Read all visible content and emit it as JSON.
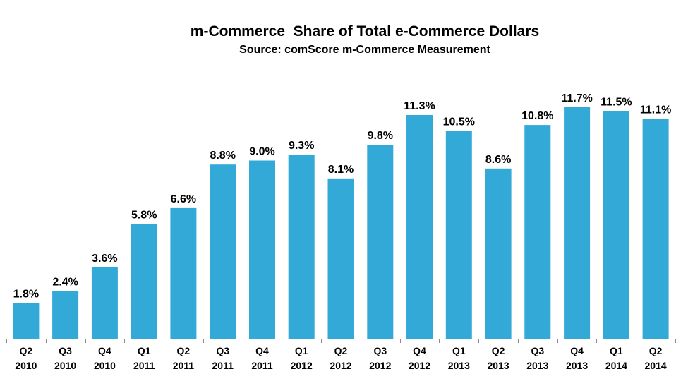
{
  "chart_data": {
    "type": "bar",
    "title": "m-Commerce  Share of Total e-Commerce Dollars",
    "subtitle": "Source: comScore m-Commerce Measurement",
    "xlabel": "",
    "ylabel": "",
    "ylim": [
      0,
      14
    ],
    "grid": false,
    "legend": "none",
    "bar_color": "#33A9D7",
    "categories": [
      [
        "Q2",
        "2010"
      ],
      [
        "Q3",
        "2010"
      ],
      [
        "Q4",
        "2010"
      ],
      [
        "Q1",
        "2011"
      ],
      [
        "Q2",
        "2011"
      ],
      [
        "Q3",
        "2011"
      ],
      [
        "Q4",
        "2011"
      ],
      [
        "Q1",
        "2012"
      ],
      [
        "Q2",
        "2012"
      ],
      [
        "Q3",
        "2012"
      ],
      [
        "Q4",
        "2012"
      ],
      [
        "Q1",
        "2013"
      ],
      [
        "Q2",
        "2013"
      ],
      [
        "Q3",
        "2013"
      ],
      [
        "Q4",
        "2013"
      ],
      [
        "Q1",
        "2014"
      ],
      [
        "Q2",
        "2014"
      ]
    ],
    "values": [
      1.8,
      2.4,
      3.6,
      5.8,
      6.6,
      8.8,
      9.0,
      9.3,
      8.1,
      9.8,
      11.3,
      10.5,
      8.6,
      10.8,
      11.7,
      11.5,
      11.1
    ],
    "data_labels": [
      "1.8%",
      "2.4%",
      "3.6%",
      "5.8%",
      "6.6%",
      "8.8%",
      "9.0%",
      "9.3%",
      "8.1%",
      "9.8%",
      "11.3%",
      "10.5%",
      "8.6%",
      "10.8%",
      "11.7%",
      "11.5%",
      "11.1%"
    ]
  }
}
